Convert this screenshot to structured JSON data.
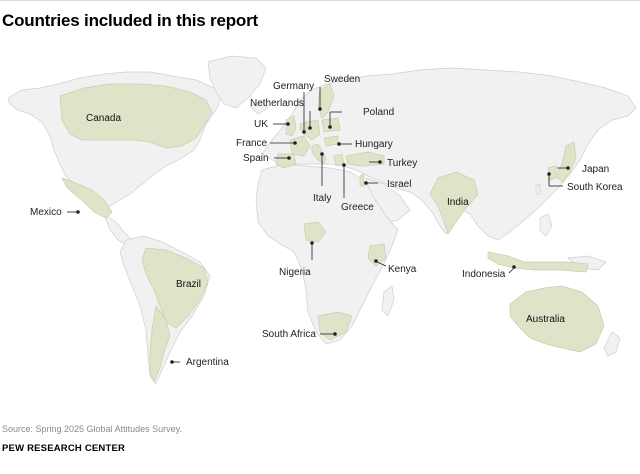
{
  "title": "Countries included in this report",
  "colors": {
    "land": "#f1f1f1",
    "border": "#cfcfcf",
    "included": "#e0e3c8",
    "leader": "#222222"
  },
  "countries": {
    "canada": "Canada",
    "mexico": "Mexico",
    "brazil": "Brazil",
    "argentina": "Argentina",
    "uk": "UK",
    "france": "France",
    "spain": "Spain",
    "germany": "Germany",
    "netherlands": "Netherlands",
    "sweden": "Sweden",
    "poland": "Poland",
    "hungary": "Hungary",
    "italy": "Italy",
    "greece": "Greece",
    "turkey": "Turkey",
    "israel": "Israel",
    "nigeria": "Nigeria",
    "kenya": "Kenya",
    "south_africa": "South Africa",
    "india": "India",
    "indonesia": "Indonesia",
    "japan": "Japan",
    "south_korea": "South Korea",
    "australia": "Australia"
  },
  "source": "Source: Spring 2025 Global Attitudes Survey.",
  "brand": "PEW RESEARCH CENTER"
}
